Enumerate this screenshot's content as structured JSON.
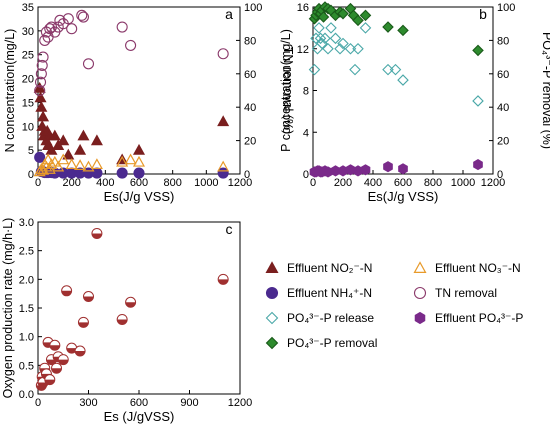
{
  "chart_data": [
    {
      "type": "scatter",
      "panel_label": "a",
      "xlabel": "Es(J/g VSS)",
      "ylabel": "N concentration(mg/L)",
      "y2label": "TN removal (%)",
      "xlim": [
        0,
        1200
      ],
      "ylim": [
        0,
        35
      ],
      "y2lim": [
        0,
        100
      ],
      "xticks": [
        "0",
        "200",
        "400",
        "600",
        "800",
        "1000",
        "1200"
      ],
      "yticks": [
        "0",
        "5",
        "10",
        "15",
        "20",
        "25",
        "30",
        "35"
      ],
      "y2ticks": [
        "0",
        "20",
        "40",
        "60",
        "80",
        "100"
      ],
      "series": [
        {
          "name": "Effluent NO₂⁻-N",
          "marker": "triangle",
          "color": "#7a1f1f",
          "axis": "left",
          "x": [
            10,
            15,
            20,
            25,
            30,
            35,
            40,
            50,
            55,
            60,
            70,
            80,
            100,
            120,
            150,
            180,
            250,
            270,
            350,
            500,
            600,
            1100
          ],
          "y": [
            18,
            16,
            14,
            10,
            12,
            8,
            9,
            7,
            9,
            6,
            8,
            5,
            8,
            6,
            7,
            4,
            5,
            8,
            7,
            3,
            5,
            11
          ]
        },
        {
          "name": "Effluent NH₄⁺-N",
          "marker": "circle-filled",
          "color": "#4b2a8f",
          "axis": "left",
          "x": [
            10,
            20,
            30,
            40,
            50,
            60,
            80,
            100,
            150,
            200,
            250,
            300,
            350,
            500,
            600,
            1100
          ],
          "y": [
            3.5,
            0.5,
            0.5,
            0.3,
            0.3,
            0.3,
            0.3,
            0.2,
            0.2,
            0.2,
            0.2,
            0.2,
            0.2,
            0.2,
            0.2,
            0.2
          ]
        },
        {
          "name": "Effluent NO₃⁻-N",
          "marker": "triangle-open",
          "color": "#e89a2a",
          "axis": "left",
          "x": [
            10,
            20,
            30,
            40,
            50,
            60,
            70,
            80,
            100,
            120,
            150,
            200,
            250,
            300,
            350,
            500,
            550,
            600,
            1100
          ],
          "y": [
            0.5,
            1,
            0.8,
            2,
            1.5,
            3,
            1,
            2,
            2.5,
            1.5,
            3,
            2,
            1.8,
            1.5,
            2,
            2.5,
            3,
            2.5,
            1.5
          ]
        },
        {
          "name": "TN removal",
          "marker": "circle-open",
          "color": "#8b3a6b",
          "axis": "right",
          "x": [
            10,
            15,
            20,
            25,
            30,
            40,
            50,
            60,
            70,
            80,
            100,
            120,
            130,
            150,
            180,
            200,
            260,
            270,
            300,
            500,
            550,
            1100
          ],
          "y": [
            50,
            55,
            60,
            65,
            70,
            80,
            85,
            82,
            87,
            88,
            85,
            88,
            92,
            90,
            93,
            87,
            95,
            94,
            66,
            88,
            77,
            72
          ]
        }
      ]
    },
    {
      "type": "scatter",
      "panel_label": "b",
      "xlabel": "Es(J/g VSS)",
      "ylabel": "P concentration(mg/L)",
      "y2label": "PO₄³⁻-P removal (%)",
      "xlim": [
        0,
        1200
      ],
      "ylim": [
        0,
        16
      ],
      "y2lim": [
        0,
        100
      ],
      "xticks": [
        "0",
        "200",
        "400",
        "600",
        "800",
        "1000",
        "1200"
      ],
      "yticks": [
        "0",
        "4",
        "8",
        "12",
        "16"
      ],
      "y2ticks": [
        "0",
        "20",
        "40",
        "60",
        "80",
        "100"
      ],
      "series": [
        {
          "name": "PO₄³⁻-P release",
          "marker": "diamond-open",
          "color": "#4aa8a8",
          "axis": "left",
          "x": [
            10,
            20,
            30,
            40,
            50,
            60,
            80,
            100,
            120,
            150,
            180,
            200,
            250,
            280,
            300,
            350,
            500,
            550,
            600,
            1100
          ],
          "y": [
            10,
            13,
            12,
            14,
            13,
            12.5,
            13,
            12,
            14,
            13,
            12,
            12.5,
            12,
            10,
            12,
            14,
            10,
            10,
            9,
            7
          ]
        },
        {
          "name": "PO₄³⁻-P removal",
          "marker": "diamond-filled",
          "color": "#2e8b2e",
          "axis": "right",
          "x": [
            10,
            20,
            30,
            40,
            50,
            60,
            70,
            80,
            100,
            120,
            150,
            180,
            200,
            250,
            270,
            300,
            350,
            500,
            600,
            1100
          ],
          "y": [
            93,
            95,
            97,
            99,
            96,
            98,
            94,
            100,
            99,
            98,
            95,
            97,
            96,
            99,
            95,
            92,
            95,
            88,
            86,
            74
          ]
        },
        {
          "name": "Effluent PO₄³⁻-P",
          "marker": "hexagon",
          "color": "#7a2a8a",
          "axis": "left",
          "x": [
            10,
            20,
            30,
            40,
            50,
            60,
            80,
            100,
            150,
            200,
            250,
            300,
            350,
            500,
            600,
            1100
          ],
          "y": [
            0.2,
            0.2,
            0.3,
            0.3,
            0.2,
            0.2,
            0.3,
            0.2,
            0.3,
            0.3,
            0.4,
            0.3,
            0.4,
            0.7,
            0.5,
            0.9
          ]
        }
      ]
    },
    {
      "type": "scatter",
      "panel_label": "c",
      "xlabel": "Es (J/gVSS)",
      "ylabel": "Oxygen production rate (mg/h·L)",
      "xlim": [
        0,
        1200
      ],
      "ylim": [
        0,
        3.0
      ],
      "xticks": [
        "0",
        "300",
        "600",
        "900",
        "1200"
      ],
      "yticks": [
        "0.0",
        "0.5",
        "1.0",
        "1.5",
        "2.0",
        "2.5",
        "3.0"
      ],
      "series": [
        {
          "name": "Oxygen production rate",
          "marker": "circle-half",
          "color": "#a03030",
          "x": [
            20,
            25,
            30,
            40,
            50,
            60,
            70,
            80,
            100,
            110,
            120,
            150,
            170,
            200,
            250,
            270,
            300,
            350,
            500,
            550,
            1100
          ],
          "y": [
            0.15,
            0.3,
            0.2,
            0.45,
            0.35,
            0.9,
            0.25,
            0.6,
            0.85,
            0.45,
            0.65,
            0.6,
            1.8,
            0.8,
            0.75,
            1.25,
            1.7,
            2.8,
            1.3,
            1.6,
            2.0
          ]
        }
      ]
    }
  ],
  "legend": {
    "items": [
      {
        "label": "Effluent NO₂⁻-N",
        "marker": "triangle",
        "color": "#7a1f1f"
      },
      {
        "label": "Effluent NO₃⁻-N",
        "marker": "triangle-open",
        "color": "#e89a2a"
      },
      {
        "label": "Effluent NH₄⁺-N",
        "marker": "circle-filled",
        "color": "#4b2a8f"
      },
      {
        "label": "TN removal",
        "marker": "circle-open",
        "color": "#8b3a6b"
      },
      {
        "label": "PO₄³⁻-P release",
        "marker": "diamond-open",
        "color": "#4aa8a8"
      },
      {
        "label": "Effluent PO₄³⁻-P",
        "marker": "hexagon",
        "color": "#7a2a8a"
      },
      {
        "label": "PO₄³⁻-P removal",
        "marker": "diamond-filled",
        "color": "#2e8b2e"
      }
    ]
  }
}
